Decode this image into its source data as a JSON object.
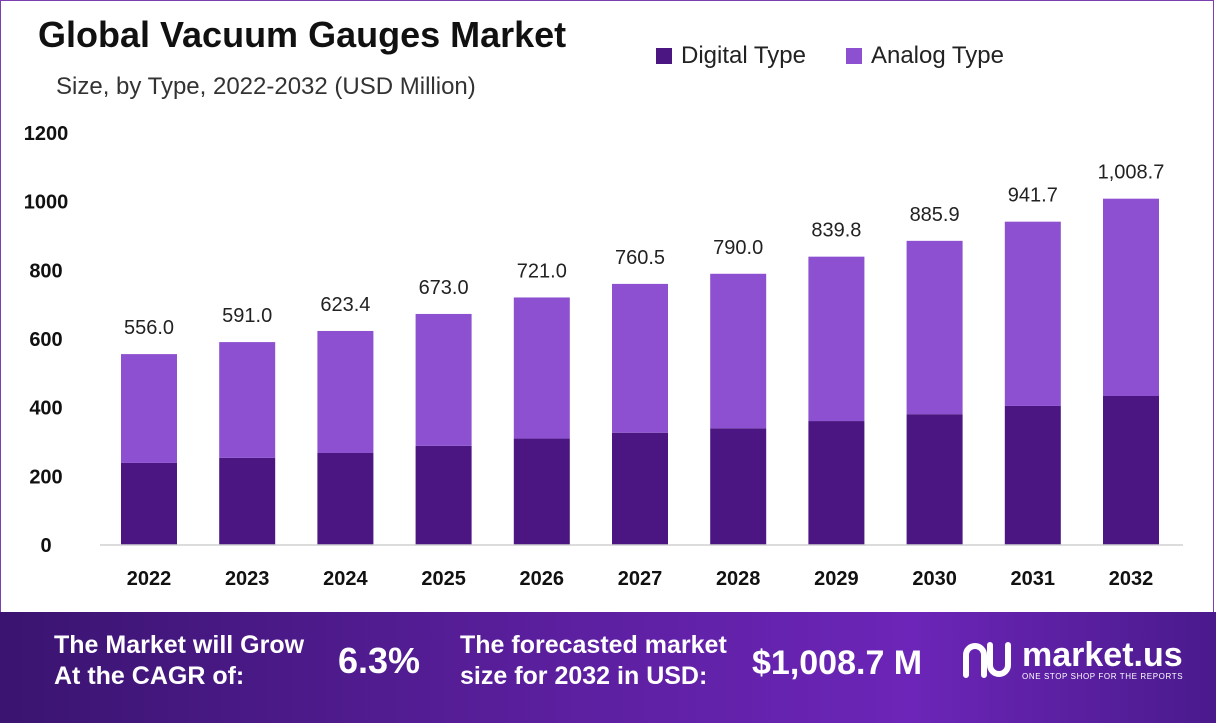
{
  "header": {
    "title": "Global Vacuum Gauges Market",
    "subtitle": "Size, by Type, 2022-2032 (USD Million)"
  },
  "legend": {
    "items": [
      {
        "label": "Digital Type",
        "color": "#4b1582"
      },
      {
        "label": "Analog Type",
        "color": "#8c50d0"
      }
    ]
  },
  "chart_data": {
    "type": "bar",
    "stacked": true,
    "categories": [
      "2022",
      "2023",
      "2024",
      "2025",
      "2026",
      "2027",
      "2028",
      "2029",
      "2030",
      "2031",
      "2032"
    ],
    "series": [
      {
        "name": "Digital Type",
        "color": "#4b1582",
        "values": [
          239,
          254,
          268,
          289,
          310,
          327,
          340,
          361,
          381,
          405,
          434
        ]
      },
      {
        "name": "Analog Type",
        "color": "#8c50d0",
        "values": [
          317,
          337,
          355.4,
          384,
          411,
          433.5,
          450,
          478.8,
          504.9,
          536.7,
          574.7
        ]
      }
    ],
    "totals": [
      556.0,
      591.0,
      623.4,
      673.0,
      721.0,
      760.5,
      790.0,
      839.8,
      885.9,
      941.7,
      1008.7
    ],
    "total_labels": [
      "556.0",
      "591.0",
      "623.4",
      "673.0",
      "721.0",
      "760.5",
      "790.0",
      "839.8",
      "885.9",
      "941.7",
      "1,008.7"
    ],
    "y_ticks": [
      0,
      200,
      400,
      600,
      800,
      1000,
      1200
    ],
    "ylim": [
      0,
      1200
    ],
    "grid": false,
    "legend_position": "top-right"
  },
  "footer": {
    "cagr_label_line1": "The Market will Grow",
    "cagr_label_line2": "At the CAGR of:",
    "cagr_value": "6.3%",
    "forecast_label_line1": "The forecasted market",
    "forecast_label_line2": "size for 2032 in USD:",
    "forecast_value": "$1,008.7 M",
    "logo_name": "market.us",
    "logo_tagline": "ONE STOP SHOP FOR THE REPORTS"
  }
}
